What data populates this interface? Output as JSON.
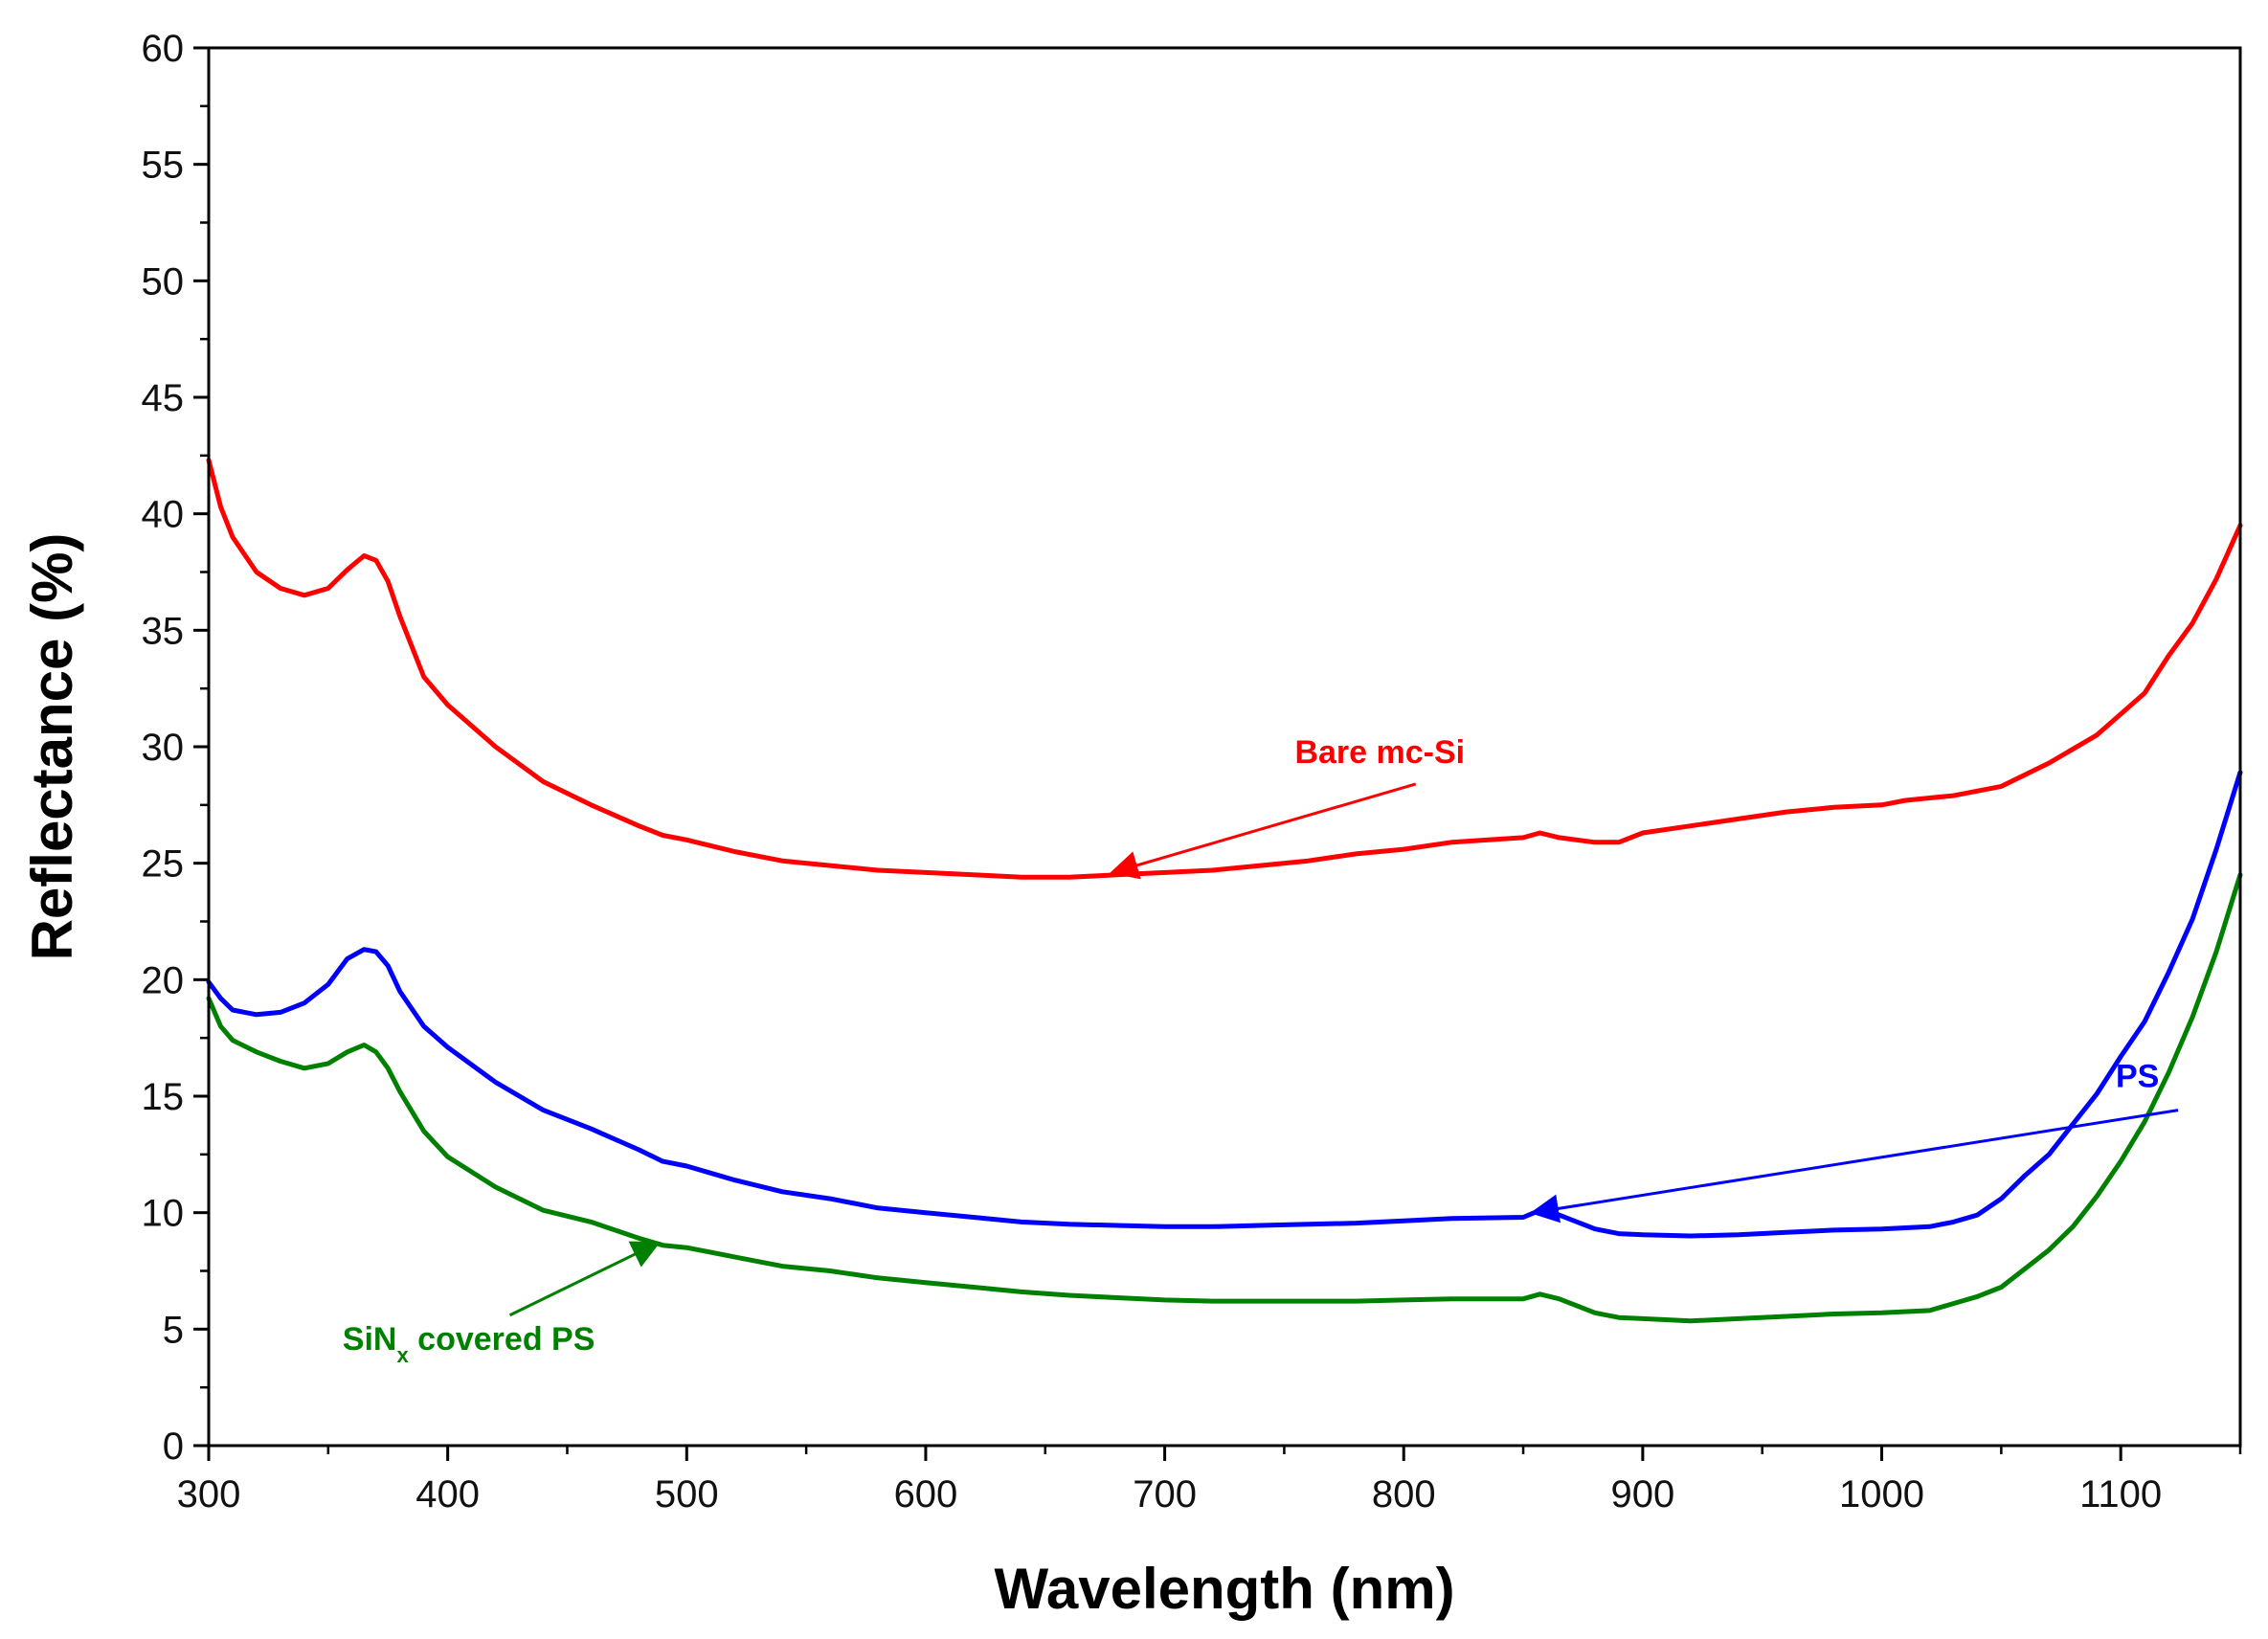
{
  "chart_data": {
    "type": "line",
    "title": "",
    "xlabel": "Wavelength (nm)",
    "ylabel": "Reflectance (%)",
    "xlim": [
      300,
      1150
    ],
    "ylim": [
      0,
      60
    ],
    "xticks": [
      300,
      400,
      500,
      600,
      700,
      800,
      900,
      1000,
      1100
    ],
    "yticks": [
      0,
      5,
      10,
      15,
      20,
      25,
      30,
      35,
      40,
      45,
      50,
      55,
      60
    ],
    "x_minor_step": 50,
    "y_minor_step": 2.5,
    "grid": false,
    "series": [
      {
        "name": "Bare mc-Si",
        "color": "#ff0000",
        "points": [
          [
            300,
            42.3
          ],
          [
            305,
            40.3
          ],
          [
            310,
            39.0
          ],
          [
            320,
            37.5
          ],
          [
            330,
            36.8
          ],
          [
            340,
            36.5
          ],
          [
            350,
            36.8
          ],
          [
            358,
            37.6
          ],
          [
            365,
            38.2
          ],
          [
            370,
            38.0
          ],
          [
            375,
            37.1
          ],
          [
            380,
            35.6
          ],
          [
            390,
            33.0
          ],
          [
            400,
            31.8
          ],
          [
            420,
            30.0
          ],
          [
            440,
            28.5
          ],
          [
            460,
            27.5
          ],
          [
            480,
            26.6
          ],
          [
            490,
            26.2
          ],
          [
            500,
            26.0
          ],
          [
            520,
            25.5
          ],
          [
            540,
            25.1
          ],
          [
            560,
            24.9
          ],
          [
            580,
            24.7
          ],
          [
            600,
            24.6
          ],
          [
            620,
            24.5
          ],
          [
            640,
            24.4
          ],
          [
            660,
            24.4
          ],
          [
            680,
            24.5
          ],
          [
            700,
            24.6
          ],
          [
            720,
            24.7
          ],
          [
            740,
            24.9
          ],
          [
            760,
            25.1
          ],
          [
            780,
            25.4
          ],
          [
            800,
            25.6
          ],
          [
            820,
            25.9
          ],
          [
            850,
            26.1
          ],
          [
            857,
            26.3
          ],
          [
            865,
            26.1
          ],
          [
            880,
            25.9
          ],
          [
            890,
            25.9
          ],
          [
            900,
            26.3
          ],
          [
            920,
            26.6
          ],
          [
            940,
            26.9
          ],
          [
            960,
            27.2
          ],
          [
            980,
            27.4
          ],
          [
            1000,
            27.5
          ],
          [
            1010,
            27.7
          ],
          [
            1020,
            27.8
          ],
          [
            1030,
            27.9
          ],
          [
            1050,
            28.3
          ],
          [
            1070,
            29.3
          ],
          [
            1090,
            30.5
          ],
          [
            1100,
            31.4
          ],
          [
            1110,
            32.3
          ],
          [
            1120,
            33.9
          ],
          [
            1130,
            35.3
          ],
          [
            1140,
            37.2
          ],
          [
            1150,
            39.5
          ]
        ]
      },
      {
        "name": "PS",
        "color": "#0000ff",
        "points": [
          [
            300,
            19.9
          ],
          [
            305,
            19.2
          ],
          [
            310,
            18.7
          ],
          [
            320,
            18.5
          ],
          [
            330,
            18.6
          ],
          [
            340,
            19.0
          ],
          [
            350,
            19.8
          ],
          [
            358,
            20.9
          ],
          [
            365,
            21.3
          ],
          [
            370,
            21.2
          ],
          [
            375,
            20.6
          ],
          [
            380,
            19.5
          ],
          [
            390,
            18.0
          ],
          [
            400,
            17.1
          ],
          [
            420,
            15.6
          ],
          [
            440,
            14.4
          ],
          [
            460,
            13.6
          ],
          [
            480,
            12.7
          ],
          [
            490,
            12.2
          ],
          [
            500,
            12.0
          ],
          [
            520,
            11.4
          ],
          [
            540,
            10.9
          ],
          [
            560,
            10.6
          ],
          [
            580,
            10.2
          ],
          [
            600,
            10.0
          ],
          [
            620,
            9.8
          ],
          [
            640,
            9.6
          ],
          [
            660,
            9.5
          ],
          [
            680,
            9.45
          ],
          [
            700,
            9.4
          ],
          [
            720,
            9.4
          ],
          [
            740,
            9.45
          ],
          [
            760,
            9.5
          ],
          [
            780,
            9.55
          ],
          [
            800,
            9.65
          ],
          [
            820,
            9.75
          ],
          [
            850,
            9.8
          ],
          [
            857,
            10.1
          ],
          [
            865,
            9.9
          ],
          [
            880,
            9.3
          ],
          [
            890,
            9.1
          ],
          [
            900,
            9.05
          ],
          [
            920,
            9.0
          ],
          [
            940,
            9.05
          ],
          [
            960,
            9.15
          ],
          [
            980,
            9.25
          ],
          [
            1000,
            9.3
          ],
          [
            1020,
            9.4
          ],
          [
            1030,
            9.6
          ],
          [
            1040,
            9.9
          ],
          [
            1050,
            10.6
          ],
          [
            1060,
            11.6
          ],
          [
            1070,
            12.5
          ],
          [
            1080,
            13.8
          ],
          [
            1090,
            15.1
          ],
          [
            1100,
            16.7
          ],
          [
            1110,
            18.2
          ],
          [
            1120,
            20.3
          ],
          [
            1130,
            22.6
          ],
          [
            1140,
            25.6
          ],
          [
            1150,
            28.9
          ]
        ]
      },
      {
        "name": "SiNx covered PS",
        "color": "#008000",
        "points": [
          [
            300,
            19.2
          ],
          [
            305,
            18.0
          ],
          [
            310,
            17.4
          ],
          [
            320,
            16.9
          ],
          [
            330,
            16.5
          ],
          [
            340,
            16.2
          ],
          [
            350,
            16.4
          ],
          [
            358,
            16.9
          ],
          [
            365,
            17.2
          ],
          [
            370,
            16.9
          ],
          [
            375,
            16.2
          ],
          [
            380,
            15.2
          ],
          [
            390,
            13.5
          ],
          [
            400,
            12.4
          ],
          [
            420,
            11.1
          ],
          [
            440,
            10.1
          ],
          [
            460,
            9.6
          ],
          [
            480,
            8.9
          ],
          [
            490,
            8.6
          ],
          [
            500,
            8.5
          ],
          [
            520,
            8.1
          ],
          [
            540,
            7.7
          ],
          [
            560,
            7.5
          ],
          [
            580,
            7.2
          ],
          [
            600,
            7.0
          ],
          [
            620,
            6.8
          ],
          [
            640,
            6.6
          ],
          [
            660,
            6.45
          ],
          [
            680,
            6.35
          ],
          [
            700,
            6.25
          ],
          [
            720,
            6.2
          ],
          [
            740,
            6.2
          ],
          [
            760,
            6.2
          ],
          [
            780,
            6.2
          ],
          [
            800,
            6.25
          ],
          [
            820,
            6.3
          ],
          [
            850,
            6.3
          ],
          [
            857,
            6.5
          ],
          [
            865,
            6.3
          ],
          [
            880,
            5.7
          ],
          [
            890,
            5.5
          ],
          [
            900,
            5.45
          ],
          [
            920,
            5.35
          ],
          [
            940,
            5.45
          ],
          [
            960,
            5.55
          ],
          [
            980,
            5.65
          ],
          [
            1000,
            5.7
          ],
          [
            1020,
            5.8
          ],
          [
            1030,
            6.1
          ],
          [
            1040,
            6.4
          ],
          [
            1050,
            6.8
          ],
          [
            1060,
            7.6
          ],
          [
            1070,
            8.4
          ],
          [
            1080,
            9.4
          ],
          [
            1090,
            10.7
          ],
          [
            1100,
            12.2
          ],
          [
            1110,
            13.9
          ],
          [
            1120,
            16.0
          ],
          [
            1130,
            18.4
          ],
          [
            1140,
            21.2
          ],
          [
            1150,
            24.5
          ]
        ]
      }
    ],
    "annotations": [
      {
        "series": "Bare mc-Si",
        "label": "Bare mc-Si",
        "text_x": 790,
        "text_y": 29.3,
        "anchor": "middle",
        "arrow_from": [
          805,
          28.4
        ],
        "arrow_to": [
          678,
          24.6
        ]
      },
      {
        "series": "PS",
        "label": "PS",
        "text_x": 1107,
        "text_y": 15.4,
        "anchor": "middle",
        "arrow_from": [
          1124,
          14.4
        ],
        "arrow_to": [
          854,
          10.0
        ]
      },
      {
        "series": "SiNx covered PS",
        "label": "SiN",
        "subscript": "x",
        "label_suffix": " covered PS",
        "text_x": 356,
        "text_y": 4.1,
        "anchor": "start",
        "arrow_from": [
          426,
          5.6
        ],
        "arrow_to": [
          488,
          8.7
        ]
      }
    ]
  }
}
